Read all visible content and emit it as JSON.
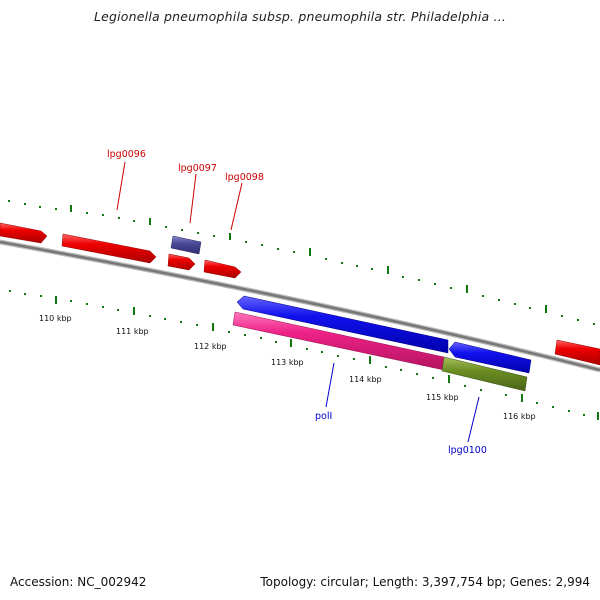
{
  "title": "Legionella pneumophila subsp. pneumophila str. Philadelphia ...",
  "footer": {
    "accession": "Accession: NC_002942",
    "topology": "Topology: circular; Length: 3,397,754 bp; Genes: 2,994"
  },
  "colors": {
    "forward_gene": "#ee0000",
    "reverse_gene": "#1111ee",
    "rna_gene": "#4a4a99",
    "cds_feature": "#ee2288",
    "other_feature": "#6b8e23",
    "backbone": "#888888",
    "tick": "#117711",
    "forward_label": "#cc0000",
    "reverse_label": "#0000cc"
  },
  "scale": {
    "unit": "kbp",
    "tick_labels": [
      "110 kbp",
      "111 kbp",
      "112 kbp",
      "113 kbp",
      "114 kbp",
      "115 kbp",
      "116 kbp"
    ]
  },
  "labels": {
    "lpg0096": "lpg0096",
    "lpg0097": "lpg0097",
    "lpg0098": "lpg0098",
    "polI": "polI",
    "lpg0100": "lpg0100"
  }
}
